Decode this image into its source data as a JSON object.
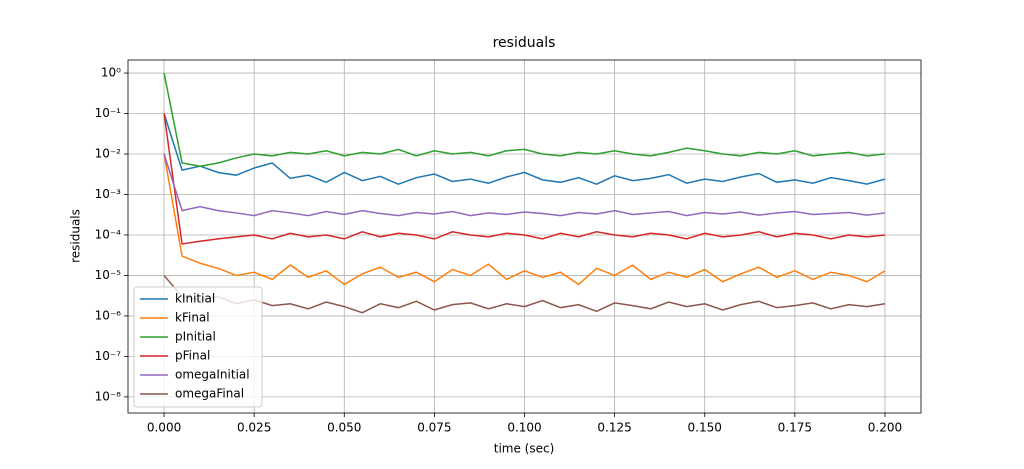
{
  "chart_data": {
    "type": "line",
    "title": "residuals",
    "xlabel": "time (sec)",
    "ylabel": "residuals",
    "log_y": true,
    "grid": true,
    "legend": "lower left",
    "xlim": [
      -0.01,
      0.21
    ],
    "ylim": [
      2.1,
      4e-09
    ],
    "xticks": [
      {
        "value": 0,
        "label": "0.000"
      },
      {
        "value": 0.025,
        "label": "0.025"
      },
      {
        "value": 0.05,
        "label": "0.050"
      },
      {
        "value": 0.075,
        "label": "0.075"
      },
      {
        "value": 0.1,
        "label": "0.100"
      },
      {
        "value": 0.125,
        "label": "0.125"
      },
      {
        "value": 0.15,
        "label": "0.150"
      },
      {
        "value": 0.175,
        "label": "0.175"
      },
      {
        "value": 0.2,
        "label": "0.200"
      }
    ],
    "yticks": [
      {
        "value": 1,
        "label": "10⁰"
      },
      {
        "value": 0.1,
        "label": "10⁻¹"
      },
      {
        "value": 0.01,
        "label": "10⁻²"
      },
      {
        "value": 0.001,
        "label": "10⁻³"
      },
      {
        "value": 0.0001,
        "label": "10⁻⁴"
      },
      {
        "value": 1e-05,
        "label": "10⁻⁵"
      },
      {
        "value": 1e-06,
        "label": "10⁻⁶"
      },
      {
        "value": 1e-07,
        "label": "10⁻⁷"
      },
      {
        "value": 1e-08,
        "label": "10⁻⁸"
      }
    ],
    "x": [
      0,
      0.005,
      0.01,
      0.015,
      0.02,
      0.025,
      0.03,
      0.035,
      0.04,
      0.045,
      0.05,
      0.055,
      0.06,
      0.065,
      0.07,
      0.075,
      0.08,
      0.085,
      0.09,
      0.095,
      0.1,
      0.105,
      0.11,
      0.115,
      0.12,
      0.125,
      0.13,
      0.135,
      0.14,
      0.145,
      0.15,
      0.155,
      0.16,
      0.165,
      0.17,
      0.175,
      0.18,
      0.185,
      0.19,
      0.195,
      0.2
    ],
    "series": [
      {
        "name": "kInitial",
        "color": "#1f77b4",
        "values": [
          0.1,
          0.004,
          0.005,
          0.0035,
          0.003,
          0.0045,
          0.006,
          0.0025,
          0.003,
          0.002,
          0.0035,
          0.0022,
          0.0028,
          0.0018,
          0.0026,
          0.0032,
          0.0021,
          0.0024,
          0.0019,
          0.0027,
          0.0035,
          0.0023,
          0.002,
          0.0026,
          0.0018,
          0.0029,
          0.0022,
          0.0025,
          0.0031,
          0.0019,
          0.0024,
          0.0021,
          0.0027,
          0.0033,
          0.002,
          0.0023,
          0.0019,
          0.0026,
          0.0022,
          0.0018,
          0.0024
        ]
      },
      {
        "name": "kFinal",
        "color": "#ff7f0e",
        "values": [
          0.01,
          3e-05,
          2e-05,
          1.5e-05,
          1e-05,
          1.2e-05,
          8e-06,
          1.8e-05,
          9e-06,
          1.3e-05,
          6e-06,
          1.1e-05,
          1.6e-05,
          9e-06,
          1.2e-05,
          7e-06,
          1.4e-05,
          1e-05,
          1.9e-05,
          8e-06,
          1.3e-05,
          9e-06,
          1.2e-05,
          6e-06,
          1.5e-05,
          1e-05,
          1.8e-05,
          8e-06,
          1.2e-05,
          9e-06,
          1.4e-05,
          7e-06,
          1.1e-05,
          1.6e-05,
          9e-06,
          1.3e-05,
          8e-06,
          1.2e-05,
          1e-05,
          7e-06,
          1.3e-05
        ]
      },
      {
        "name": "pInitial",
        "color": "#2ca02c",
        "values": [
          1,
          0.006,
          0.005,
          0.006,
          0.008,
          0.01,
          0.009,
          0.011,
          0.01,
          0.012,
          0.009,
          0.011,
          0.01,
          0.013,
          0.009,
          0.012,
          0.01,
          0.011,
          0.009,
          0.012,
          0.013,
          0.01,
          0.009,
          0.011,
          0.01,
          0.012,
          0.01,
          0.009,
          0.011,
          0.014,
          0.012,
          0.01,
          0.009,
          0.011,
          0.01,
          0.012,
          0.009,
          0.01,
          0.011,
          0.009,
          0.01
        ]
      },
      {
        "name": "pFinal",
        "color": "#d62728",
        "values": [
          0.1,
          6e-05,
          7e-05,
          8e-05,
          9e-05,
          0.0001,
          8e-05,
          0.00011,
          9e-05,
          0.0001,
          8e-05,
          0.00012,
          9e-05,
          0.00011,
          0.0001,
          8e-05,
          0.00012,
          0.0001,
          9e-05,
          0.00011,
          0.0001,
          8e-05,
          0.00011,
          9e-05,
          0.00012,
          0.0001,
          9e-05,
          0.00011,
          0.0001,
          8e-05,
          0.00011,
          9e-05,
          0.0001,
          0.00012,
          9e-05,
          0.00011,
          0.0001,
          8e-05,
          0.0001,
          9e-05,
          0.0001
        ]
      },
      {
        "name": "omegaInitial",
        "color": "#9467bd",
        "values": [
          0.01,
          0.0004,
          0.0005,
          0.0004,
          0.00035,
          0.0003,
          0.0004,
          0.00035,
          0.0003,
          0.00038,
          0.00032,
          0.0004,
          0.00034,
          0.0003,
          0.00036,
          0.00033,
          0.00038,
          0.0003,
          0.00035,
          0.00032,
          0.00037,
          0.00034,
          0.0003,
          0.00036,
          0.00033,
          0.0004,
          0.00032,
          0.00035,
          0.00038,
          0.0003,
          0.00036,
          0.00033,
          0.00037,
          0.00031,
          0.00035,
          0.00038,
          0.00032,
          0.00034,
          0.00036,
          0.00031,
          0.00035
        ]
      },
      {
        "name": "omegaFinal",
        "color": "#8c564b",
        "values": [
          1e-05,
          3e-06,
          2.5e-06,
          3e-06,
          2e-06,
          2.5e-06,
          1.8e-06,
          2e-06,
          1.5e-06,
          2.2e-06,
          1.7e-06,
          1.2e-06,
          2e-06,
          1.6e-06,
          2.3e-06,
          1.4e-06,
          1.9e-06,
          2.1e-06,
          1.5e-06,
          2e-06,
          1.7e-06,
          2.4e-06,
          1.6e-06,
          1.9e-06,
          1.3e-06,
          2.1e-06,
          1.8e-06,
          1.5e-06,
          2.2e-06,
          1.7e-06,
          2e-06,
          1.4e-06,
          1.9e-06,
          2.3e-06,
          1.6e-06,
          1.8e-06,
          2.1e-06,
          1.5e-06,
          1.9e-06,
          1.7e-06,
          2e-06
        ]
      }
    ]
  }
}
